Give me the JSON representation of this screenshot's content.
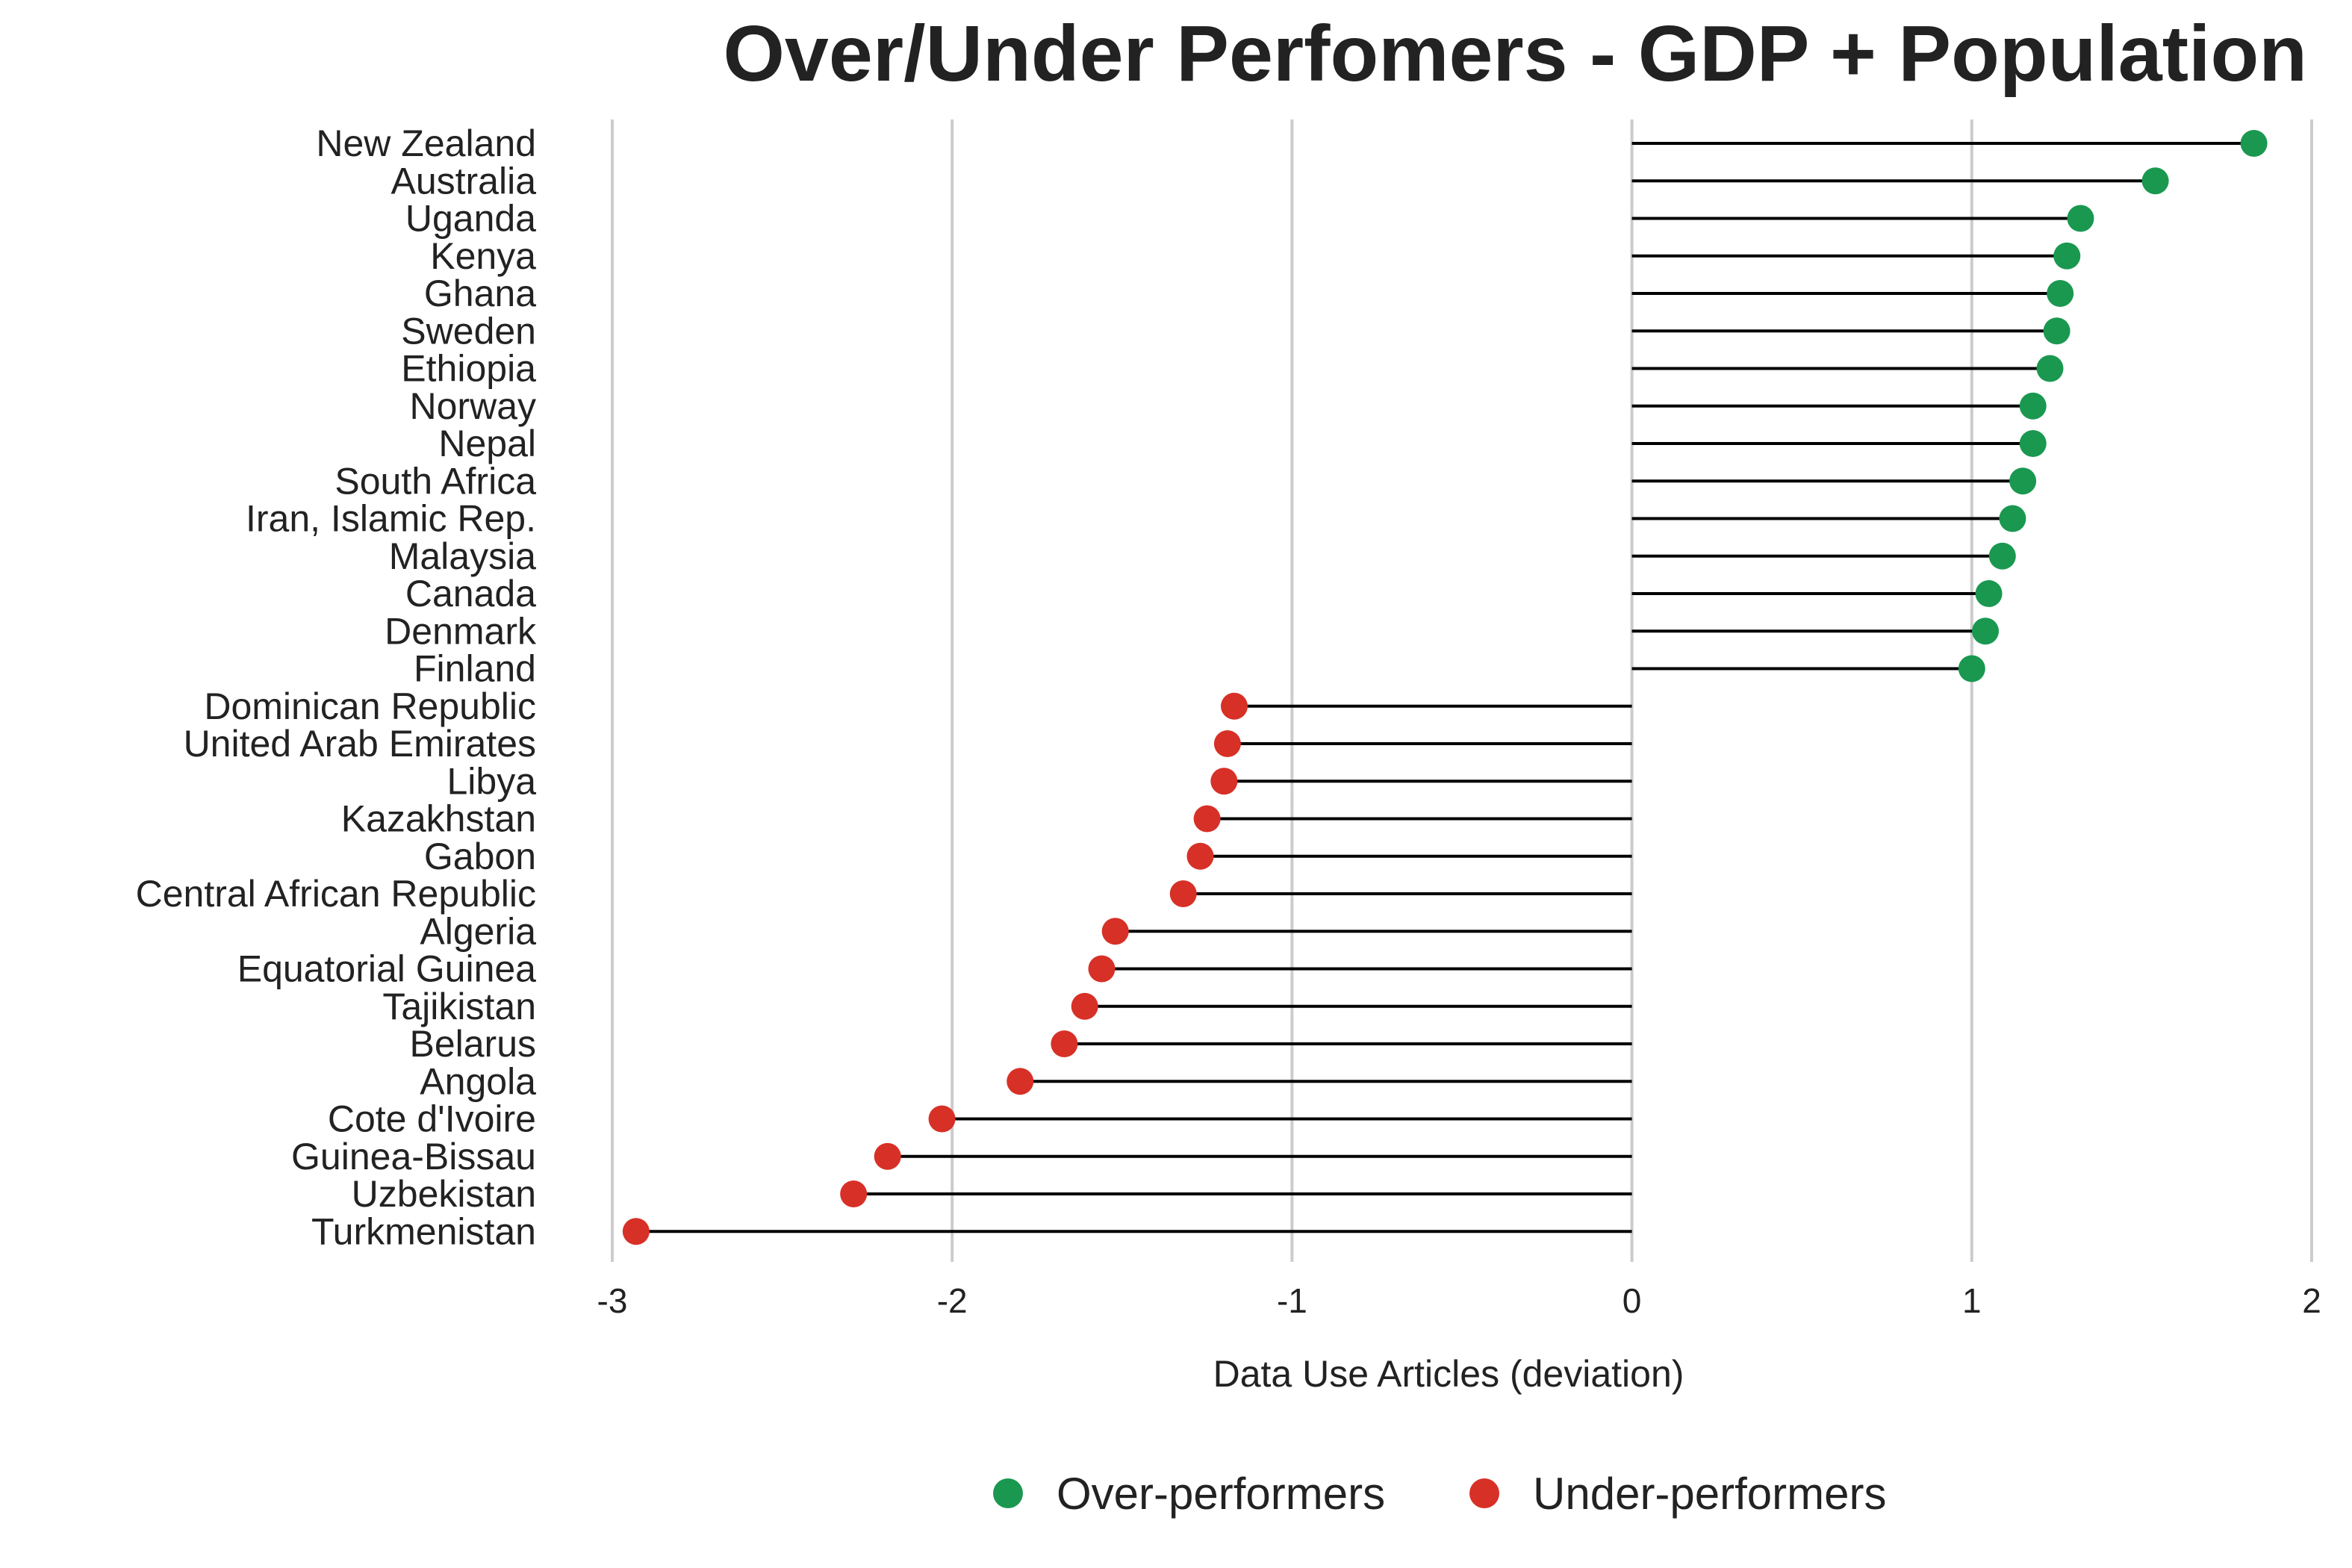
{
  "chart_data": {
    "type": "lollipop",
    "title": "Over/Under Perfomers - GDP + Population",
    "xlabel": "Data Use Articles (deviation)",
    "ylabel": "",
    "xlim": [
      -3,
      2
    ],
    "xticks": [
      "-3",
      "-2",
      "-1",
      "0",
      "1",
      "2"
    ],
    "grid": "vertical",
    "legend_position": "bottom",
    "colors": {
      "over": "#1a9850",
      "under": "#d73027",
      "stem": "#000000",
      "grid": "#cccccc"
    },
    "legend": [
      {
        "label": "Over-performers",
        "group": "over"
      },
      {
        "label": "Under-performers",
        "group": "under"
      }
    ],
    "series": [
      {
        "country": "New Zealand",
        "value": 1.83,
        "group": "over"
      },
      {
        "country": "Australia",
        "value": 1.54,
        "group": "over"
      },
      {
        "country": "Uganda",
        "value": 1.32,
        "group": "over"
      },
      {
        "country": "Kenya",
        "value": 1.28,
        "group": "over"
      },
      {
        "country": "Ghana",
        "value": 1.26,
        "group": "over"
      },
      {
        "country": "Sweden",
        "value": 1.25,
        "group": "over"
      },
      {
        "country": "Ethiopia",
        "value": 1.23,
        "group": "over"
      },
      {
        "country": "Norway",
        "value": 1.18,
        "group": "over"
      },
      {
        "country": "Nepal",
        "value": 1.18,
        "group": "over"
      },
      {
        "country": "South Africa",
        "value": 1.15,
        "group": "over"
      },
      {
        "country": "Iran, Islamic Rep.",
        "value": 1.12,
        "group": "over"
      },
      {
        "country": "Malaysia",
        "value": 1.09,
        "group": "over"
      },
      {
        "country": "Canada",
        "value": 1.05,
        "group": "over"
      },
      {
        "country": "Denmark",
        "value": 1.04,
        "group": "over"
      },
      {
        "country": "Finland",
        "value": 1.0,
        "group": "over"
      },
      {
        "country": "Dominican Republic",
        "value": -1.17,
        "group": "under"
      },
      {
        "country": "United Arab Emirates",
        "value": -1.19,
        "group": "under"
      },
      {
        "country": "Libya",
        "value": -1.2,
        "group": "under"
      },
      {
        "country": "Kazakhstan",
        "value": -1.25,
        "group": "under"
      },
      {
        "country": "Gabon",
        "value": -1.27,
        "group": "under"
      },
      {
        "country": "Central African Republic",
        "value": -1.32,
        "group": "under"
      },
      {
        "country": "Algeria",
        "value": -1.52,
        "group": "under"
      },
      {
        "country": "Equatorial Guinea",
        "value": -1.56,
        "group": "under"
      },
      {
        "country": "Tajikistan",
        "value": -1.61,
        "group": "under"
      },
      {
        "country": "Belarus",
        "value": -1.67,
        "group": "under"
      },
      {
        "country": "Angola",
        "value": -1.8,
        "group": "under"
      },
      {
        "country": "Cote d'Ivoire",
        "value": -2.03,
        "group": "under"
      },
      {
        "country": "Guinea-Bissau",
        "value": -2.19,
        "group": "under"
      },
      {
        "country": "Uzbekistan",
        "value": -2.29,
        "group": "under"
      },
      {
        "country": "Turkmenistan",
        "value": -2.93,
        "group": "under"
      }
    ]
  }
}
